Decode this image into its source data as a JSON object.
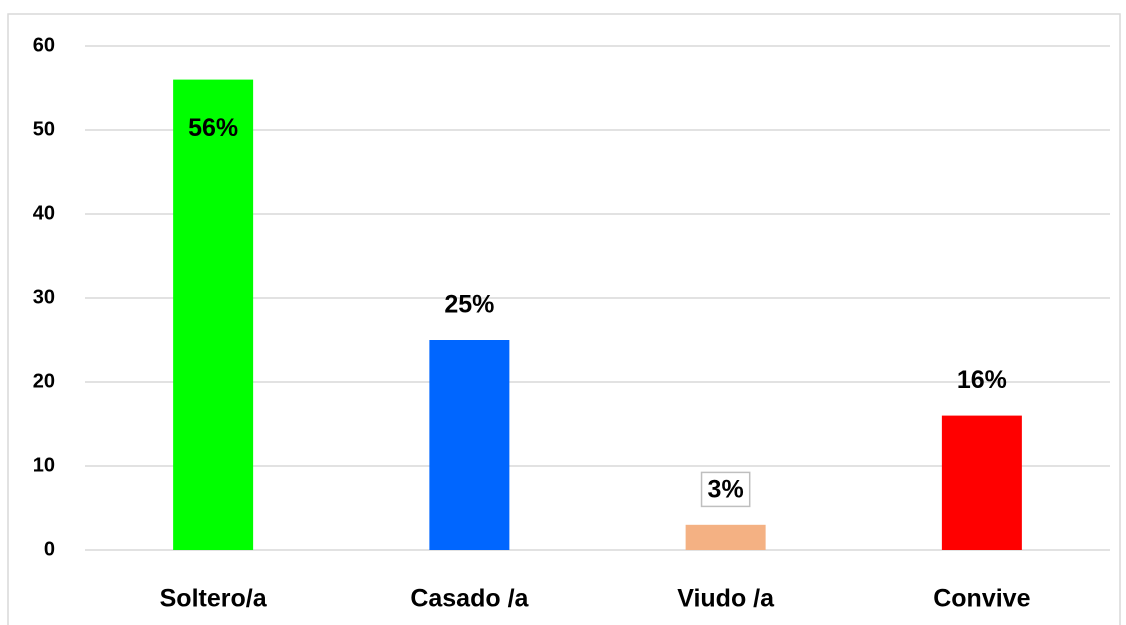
{
  "chart_data": {
    "type": "bar",
    "categories": [
      "Soltero/a",
      "Casado /a",
      "Viudo /a",
      "Convive"
    ],
    "values": [
      56,
      25,
      3,
      16
    ],
    "value_labels": [
      "56%",
      "25%",
      "3%",
      "16%"
    ],
    "colors": [
      "#00ff00",
      "#0066ff",
      "#f4b183",
      "#ff0000"
    ],
    "ylim": [
      0,
      60
    ],
    "yticks": [
      0,
      10,
      20,
      30,
      40,
      50,
      60
    ],
    "grid": true
  }
}
